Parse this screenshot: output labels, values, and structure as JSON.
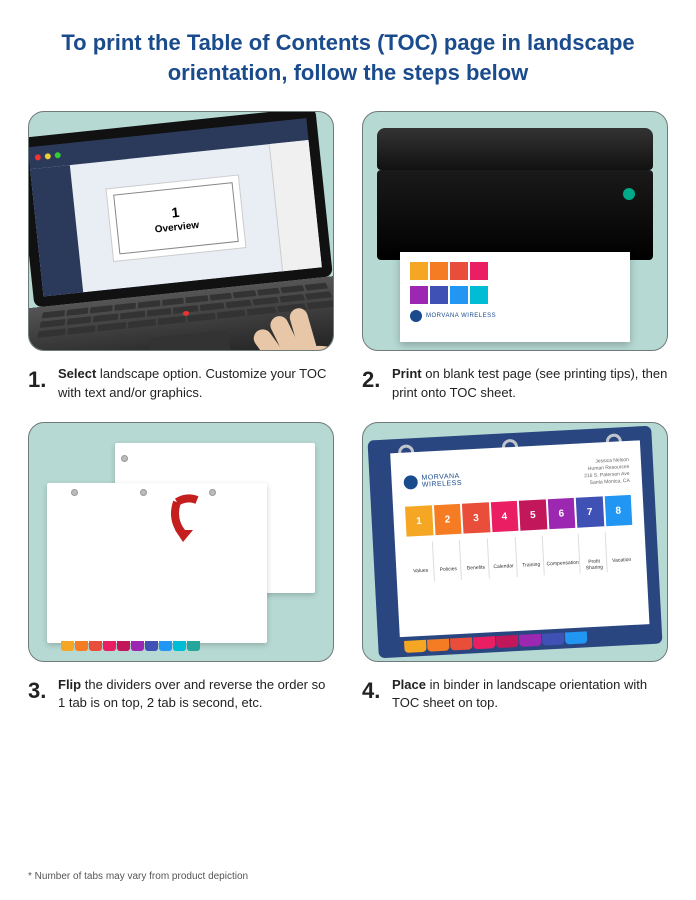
{
  "title": "To print the Table of Contents (TOC) page in landscape orientation, follow the steps below",
  "steps": [
    {
      "num": "1.",
      "bold": "Select",
      "rest": " landscape option. Customize your TOC with text and/or graphics."
    },
    {
      "num": "2.",
      "bold": "Print",
      "rest": " on blank test page (see printing tips), then print onto TOC sheet."
    },
    {
      "num": "3.",
      "bold": "Flip",
      "rest": " the dividers over and reverse the order so 1 tab is on top, 2 tab is second, etc."
    },
    {
      "num": "4.",
      "bold": "Place",
      "rest": " in binder in landscape orientation with TOC sheet on top."
    }
  ],
  "footnote": "* Number of tabs may vary from product depiction",
  "toc_card": {
    "number": "1",
    "label": "Overview"
  },
  "brand": {
    "name": "MORVANA",
    "sub": "WIRELESS"
  },
  "address": [
    "Jessica Nelson",
    "Human Resources",
    "216 S. Paterson Ave",
    "Santa Monica, CA"
  ],
  "tab_colors": [
    "#f5a623",
    "#f57c23",
    "#e94e3a",
    "#e91e63",
    "#c2185b",
    "#9c27b0",
    "#3f51b5",
    "#2196f3",
    "#00bcd4",
    "#26a69a"
  ],
  "binder_numbers": [
    "1",
    "2",
    "3",
    "4",
    "5",
    "6",
    "7",
    "8"
  ],
  "binder_labels": [
    "Values",
    "Policies",
    "Benefits",
    "Calendar",
    "Training",
    "Compensation",
    "Profit Sharing",
    "Vacation"
  ],
  "swatch_rows": [
    [
      "#f5a623",
      "#f57c23",
      "#e94e3a",
      "#e91e63"
    ],
    [
      "#9c27b0",
      "#3f51b5",
      "#2196f3",
      "#00bcd4"
    ]
  ],
  "colors": {
    "title": "#1a4b8c",
    "panel_bg": "#b7d9d3",
    "panel_border": "#6f7a7a",
    "arrow": "#c41e1e"
  }
}
